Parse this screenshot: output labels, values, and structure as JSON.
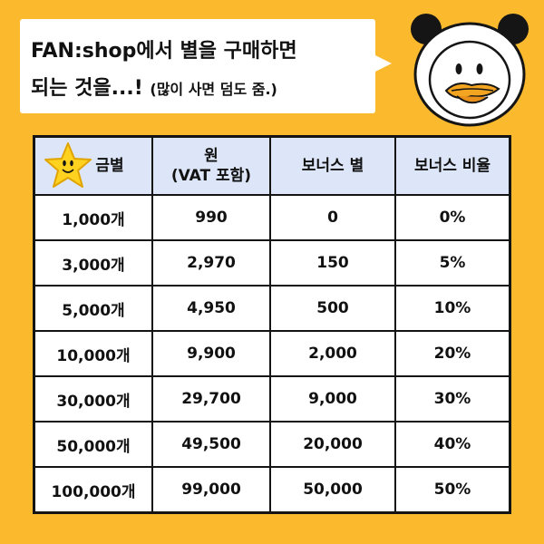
{
  "bubble": {
    "line1": "FAN:shop에서 별을 구매하면",
    "line2_main": "되는 것을...! ",
    "line2_note": "(많이 사면 덤도 줌.)"
  },
  "table": {
    "headers": {
      "col1": "금별",
      "col2_line1": "원",
      "col2_line2": "(VAT 포함)",
      "col3": "보너스 별",
      "col4": "보너스 비율"
    },
    "rows": [
      [
        "1,000개",
        "990",
        "0",
        "0%"
      ],
      [
        "3,000개",
        "2,970",
        "150",
        "5%"
      ],
      [
        "5,000개",
        "4,950",
        "500",
        "10%"
      ],
      [
        "10,000개",
        "9,900",
        "2,000",
        "20%"
      ],
      [
        "30,000개",
        "29,700",
        "9,000",
        "30%"
      ],
      [
        "50,000개",
        "49,500",
        "20,000",
        "40%"
      ],
      [
        "100,000개",
        "99,000",
        "50,000",
        "50%"
      ]
    ]
  },
  "icons": {
    "header_star": "gold-star-icon",
    "mascot": "duck-panda-mascot"
  },
  "colors": {
    "background": "#FBB92E",
    "header_fill": "#DDE6F8",
    "star": "#FFD21F"
  }
}
